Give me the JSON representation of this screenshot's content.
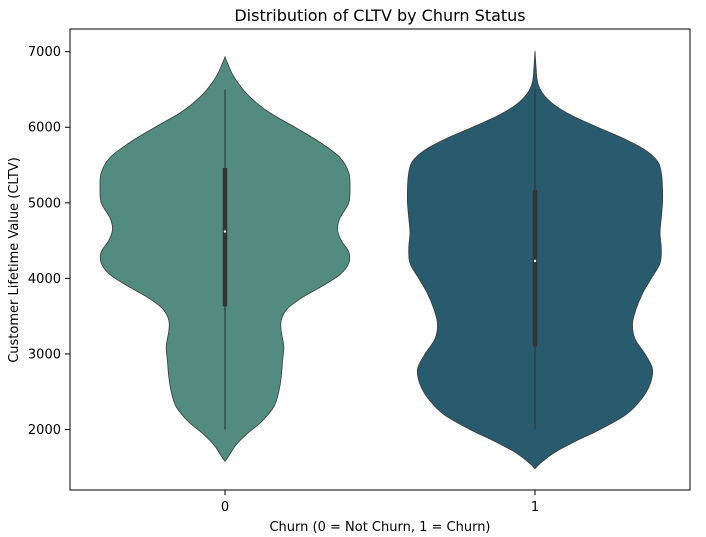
{
  "chart_data": {
    "type": "violin",
    "title": "Distribution of CLTV by Churn Status",
    "xlabel": "Churn (0 = Not Churn, 1 = Churn)",
    "ylabel": "Customer Lifetime Value (CLTV)",
    "categories": [
      "0",
      "1"
    ],
    "ylim": [
      1200,
      7300
    ],
    "yticks": [
      2000,
      3000,
      4000,
      5000,
      6000,
      7000
    ],
    "grid": false,
    "violins": [
      {
        "category": "0",
        "color": "#528b80",
        "min": 2000,
        "max": 6500,
        "q1": 3630,
        "median": 4620,
        "q3": 5460,
        "kde_min": 1580,
        "kde_max": 6930,
        "density": [
          [
            1580,
            0.0
          ],
          [
            1650,
            0.03
          ],
          [
            1800,
            0.09
          ],
          [
            1950,
            0.18
          ],
          [
            2100,
            0.29
          ],
          [
            2300,
            0.39
          ],
          [
            2500,
            0.43
          ],
          [
            2700,
            0.45
          ],
          [
            2900,
            0.46
          ],
          [
            3100,
            0.47
          ],
          [
            3300,
            0.45
          ],
          [
            3450,
            0.45
          ],
          [
            3600,
            0.5
          ],
          [
            3750,
            0.62
          ],
          [
            3900,
            0.78
          ],
          [
            4050,
            0.92
          ],
          [
            4200,
            0.99
          ],
          [
            4350,
            0.99
          ],
          [
            4500,
            0.93
          ],
          [
            4650,
            0.9
          ],
          [
            4800,
            0.92
          ],
          [
            5000,
            0.99
          ],
          [
            5200,
            1.0
          ],
          [
            5400,
            0.99
          ],
          [
            5600,
            0.92
          ],
          [
            5800,
            0.76
          ],
          [
            6000,
            0.56
          ],
          [
            6200,
            0.35
          ],
          [
            6400,
            0.2
          ],
          [
            6550,
            0.12
          ],
          [
            6700,
            0.06
          ],
          [
            6850,
            0.02
          ],
          [
            6930,
            0.0
          ]
        ]
      },
      {
        "category": "1",
        "color": "#295b6e",
        "min": 2000,
        "max": 6500,
        "q1": 3100,
        "median": 4230,
        "q3": 5170,
        "kde_min": 1480,
        "kde_max": 7010,
        "density": [
          [
            1480,
            0.0
          ],
          [
            1550,
            0.04
          ],
          [
            1700,
            0.16
          ],
          [
            1850,
            0.33
          ],
          [
            2000,
            0.52
          ],
          [
            2200,
            0.73
          ],
          [
            2400,
            0.85
          ],
          [
            2600,
            0.92
          ],
          [
            2800,
            0.94
          ],
          [
            3000,
            0.88
          ],
          [
            3200,
            0.8
          ],
          [
            3400,
            0.78
          ],
          [
            3600,
            0.81
          ],
          [
            3800,
            0.86
          ],
          [
            4000,
            0.93
          ],
          [
            4200,
            1.0
          ],
          [
            4400,
            1.01
          ],
          [
            4600,
            1.0
          ],
          [
            4800,
            1.01
          ],
          [
            5000,
            1.02
          ],
          [
            5200,
            1.02
          ],
          [
            5400,
            1.01
          ],
          [
            5550,
            0.98
          ],
          [
            5700,
            0.88
          ],
          [
            5850,
            0.71
          ],
          [
            6000,
            0.5
          ],
          [
            6150,
            0.3
          ],
          [
            6300,
            0.15
          ],
          [
            6450,
            0.06
          ],
          [
            6600,
            0.02
          ],
          [
            6800,
            0.008
          ],
          [
            7010,
            0.0
          ]
        ]
      }
    ]
  }
}
